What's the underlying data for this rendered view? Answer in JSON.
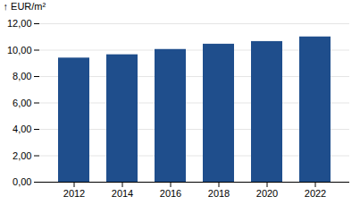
{
  "chart_data": {
    "type": "bar",
    "ylabel": "EUR/m²",
    "categories": [
      "2012",
      "2014",
      "2016",
      "2018",
      "2020",
      "2022"
    ],
    "values": [
      9.4,
      9.65,
      10.05,
      10.45,
      10.65,
      11.0
    ],
    "color": "#1F4E8C",
    "ylim": [
      0,
      12
    ],
    "yticks": [
      {
        "value": 0.0,
        "label": "0,00"
      },
      {
        "value": 2.0,
        "label": "2,00"
      },
      {
        "value": 4.0,
        "label": "4,00"
      },
      {
        "value": 6.0,
        "label": "6,00"
      },
      {
        "value": 8.0,
        "label": "8,00"
      },
      {
        "value": 10.0,
        "label": "10,00"
      },
      {
        "value": 12.0,
        "label": "12,00"
      }
    ],
    "grid": true
  }
}
